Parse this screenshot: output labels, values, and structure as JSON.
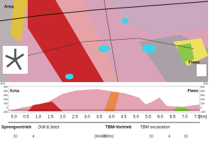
{
  "map": {
    "labels": [
      "Arna",
      "Fleen"
    ]
  },
  "profile": {
    "left_label": "Arna",
    "right_label": "Fleen",
    "unit": "[m]",
    "yticks": [
      "500",
      "400",
      "300",
      "200",
      "100",
      "0",
      "-100"
    ],
    "xticks": [
      "0.0",
      "0.5",
      "1.0",
      "1.5",
      "2.0",
      "2.5",
      "3.0",
      "3.5",
      "4.0",
      "4.5",
      "5.0",
      "5.5",
      "6.0",
      "6.5",
      "7.0",
      "7.5"
    ],
    "x_unit": "[km]"
  },
  "methods": [
    {
      "name": "Sprengvortrieb",
      "subtitle": "Drill & blast"
    },
    {
      "name": "TBM-Vortrieb",
      "subtitle": "TBM excavation"
    }
  ],
  "inflow": {
    "values": [
      "10",
      "4",
      "20",
      "10",
      "4",
      "10"
    ],
    "unit": "[l/min/100m]"
  }
}
